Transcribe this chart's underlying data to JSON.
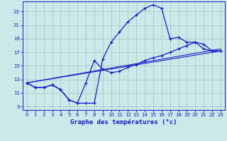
{
  "background_color": "#cce8e8",
  "grid_color": "#aacccc",
  "line_color": "#1a1acc",
  "xlabel": "Graphe des températures (°c)",
  "xlim": [
    -0.5,
    23.5
  ],
  "ylim": [
    8.5,
    24.5
  ],
  "yticks": [
    9,
    11,
    13,
    15,
    17,
    19,
    21,
    23
  ],
  "xticks": [
    0,
    1,
    2,
    3,
    4,
    5,
    6,
    7,
    8,
    9,
    10,
    11,
    12,
    13,
    14,
    15,
    16,
    17,
    18,
    19,
    20,
    21,
    22,
    23
  ],
  "curve1_x": [
    0,
    1,
    2,
    3,
    4,
    5,
    6,
    7,
    8,
    9,
    10,
    11,
    12,
    13,
    14,
    15,
    16,
    17,
    18,
    19,
    20,
    21,
    22,
    23
  ],
  "curve1_y": [
    12.5,
    11.8,
    11.8,
    12.2,
    11.5,
    10.0,
    9.5,
    9.5,
    9.5,
    16.0,
    18.5,
    20.0,
    21.5,
    22.5,
    23.5,
    24.0,
    23.5,
    19.0,
    19.2,
    18.5,
    18.5,
    17.5,
    17.2,
    17.2
  ],
  "curve2_x": [
    0,
    1,
    2,
    3,
    4,
    5,
    6,
    7,
    8,
    9,
    10,
    11,
    12,
    13,
    14,
    15,
    16,
    17,
    18,
    19,
    20,
    21,
    22,
    23
  ],
  "curve2_y": [
    12.5,
    11.8,
    11.8,
    12.2,
    11.5,
    10.0,
    9.5,
    12.5,
    15.8,
    14.5,
    14.0,
    14.2,
    14.8,
    15.2,
    15.8,
    16.2,
    16.5,
    17.0,
    17.5,
    18.0,
    18.5,
    18.2,
    17.2,
    17.2
  ],
  "trend1_x": [
    0,
    23
  ],
  "trend1_y": [
    12.5,
    17.5
  ],
  "trend2_x": [
    0,
    23
  ],
  "trend2_y": [
    12.5,
    17.2
  ]
}
